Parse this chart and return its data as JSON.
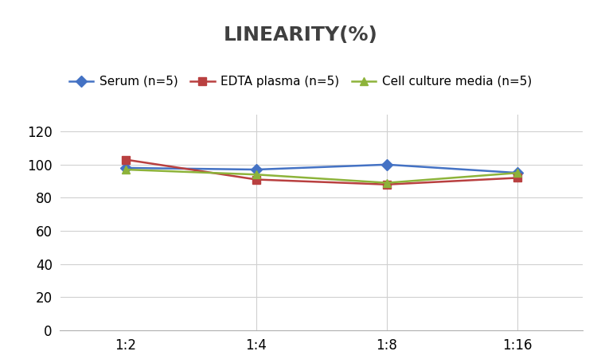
{
  "title": "LINEARITY(%)",
  "x_labels": [
    "1:2",
    "1:4",
    "1:8",
    "1:16"
  ],
  "x_positions": [
    0,
    1,
    2,
    3
  ],
  "series": [
    {
      "label": "Serum (n=5)",
      "values": [
        98,
        97,
        100,
        95
      ],
      "color": "#4472C4",
      "marker": "D"
    },
    {
      "label": "EDTA plasma (n=5)",
      "values": [
        103,
        91,
        88,
        92
      ],
      "color": "#B94040",
      "marker": "s"
    },
    {
      "label": "Cell culture media (n=5)",
      "values": [
        97,
        94,
        89,
        95
      ],
      "color": "#8DB33A",
      "marker": "^"
    }
  ],
  "ylim": [
    0,
    130
  ],
  "yticks": [
    0,
    20,
    40,
    60,
    80,
    100,
    120
  ],
  "title_fontsize": 18,
  "title_color": "#404040",
  "legend_fontsize": 11,
  "tick_fontsize": 12,
  "background_color": "#FFFFFF",
  "grid_color": "#D0D0D0",
  "line_width": 1.8,
  "marker_size": 7
}
